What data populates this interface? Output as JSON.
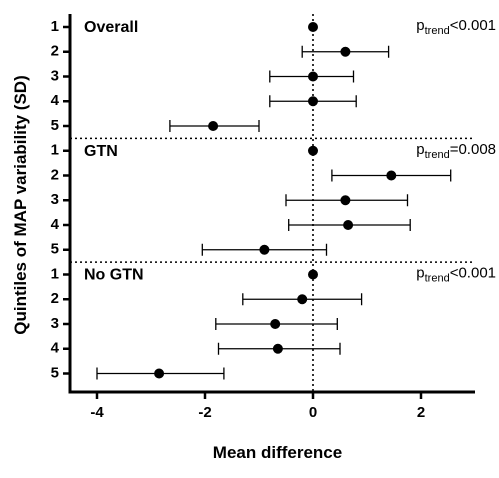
{
  "chart_data": {
    "type": "forest",
    "xlabel": "Mean difference",
    "ylabel": "Quintiles of MAP variability (SD)",
    "xlim": [
      -4.5,
      3
    ],
    "xticks": [
      -4,
      -2,
      0,
      2
    ],
    "xtick_labels": [
      "-4",
      "-2",
      "0",
      "2"
    ],
    "reference_line_x": 0,
    "grid": false,
    "panels": [
      {
        "label": "Overall",
        "p_trend_prefix": "p",
        "p_trend_sub": "trend",
        "p_trend_value": "<0.001",
        "rows": [
          {
            "quintile": "1",
            "mean": 0.0,
            "lower": 0.0,
            "upper": 0.0
          },
          {
            "quintile": "2",
            "mean": 0.6,
            "lower": -0.2,
            "upper": 1.4
          },
          {
            "quintile": "3",
            "mean": 0.0,
            "lower": -0.8,
            "upper": 0.75
          },
          {
            "quintile": "4",
            "mean": 0.0,
            "lower": -0.8,
            "upper": 0.8
          },
          {
            "quintile": "5",
            "mean": -1.85,
            "lower": -2.65,
            "upper": -1.0
          }
        ]
      },
      {
        "label": "GTN",
        "p_trend_prefix": "p",
        "p_trend_sub": "trend",
        "p_trend_value": "=0.008",
        "rows": [
          {
            "quintile": "1",
            "mean": 0.0,
            "lower": 0.0,
            "upper": 0.0
          },
          {
            "quintile": "2",
            "mean": 1.45,
            "lower": 0.35,
            "upper": 2.55
          },
          {
            "quintile": "3",
            "mean": 0.6,
            "lower": -0.5,
            "upper": 1.75
          },
          {
            "quintile": "4",
            "mean": 0.65,
            "lower": -0.45,
            "upper": 1.8
          },
          {
            "quintile": "5",
            "mean": -0.9,
            "lower": -2.05,
            "upper": 0.25
          }
        ]
      },
      {
        "label": "No GTN",
        "p_trend_prefix": "p",
        "p_trend_sub": "trend",
        "p_trend_value": "<0.001",
        "rows": [
          {
            "quintile": "1",
            "mean": 0.0,
            "lower": 0.0,
            "upper": 0.0
          },
          {
            "quintile": "2",
            "mean": -0.2,
            "lower": -1.3,
            "upper": 0.9
          },
          {
            "quintile": "3",
            "mean": -0.7,
            "lower": -1.8,
            "upper": 0.45
          },
          {
            "quintile": "4",
            "mean": -0.65,
            "lower": -1.75,
            "upper": 0.5
          },
          {
            "quintile": "5",
            "mean": -2.85,
            "lower": -4.0,
            "upper": -1.65
          }
        ]
      }
    ]
  }
}
